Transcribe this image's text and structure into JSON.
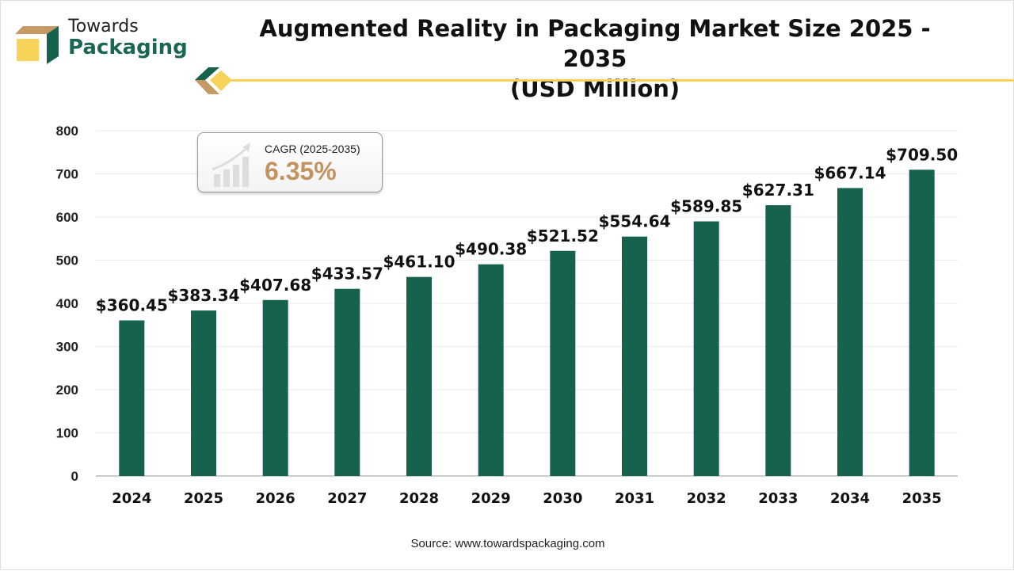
{
  "brand": {
    "line1": "Towards",
    "line2": "Packaging"
  },
  "chart_data": {
    "type": "bar",
    "title": "Augmented Reality in Packaging Market Size 2025 - 2035",
    "subtitle": "(USD Million)",
    "categories": [
      "2024",
      "2025",
      "2026",
      "2027",
      "2028",
      "2029",
      "2030",
      "2031",
      "2032",
      "2033",
      "2034",
      "2035"
    ],
    "values": [
      360.45,
      383.34,
      407.68,
      433.57,
      461.1,
      490.38,
      521.52,
      554.64,
      589.85,
      627.31,
      667.14,
      709.5
    ],
    "data_labels": [
      "$360.45",
      "$383.34",
      "$407.68",
      "$433.57",
      "$461.10",
      "$490.38",
      "$521.52",
      "$554.64",
      "$589.85",
      "$627.31",
      "$667.14",
      "$709.50"
    ],
    "ylim": [
      0,
      800
    ],
    "yticks": [
      "0",
      "100",
      "200",
      "300",
      "400",
      "500",
      "600",
      "700",
      "800"
    ],
    "grid": true,
    "bar_color": "#17614f",
    "xlabel": "",
    "ylabel": ""
  },
  "cagr": {
    "label": "CAGR (2025-2035)",
    "value": "6.35%",
    "color": "#c4925f"
  },
  "source": "Source: www.towardspackaging.com",
  "accent_color": "#f7d35a"
}
